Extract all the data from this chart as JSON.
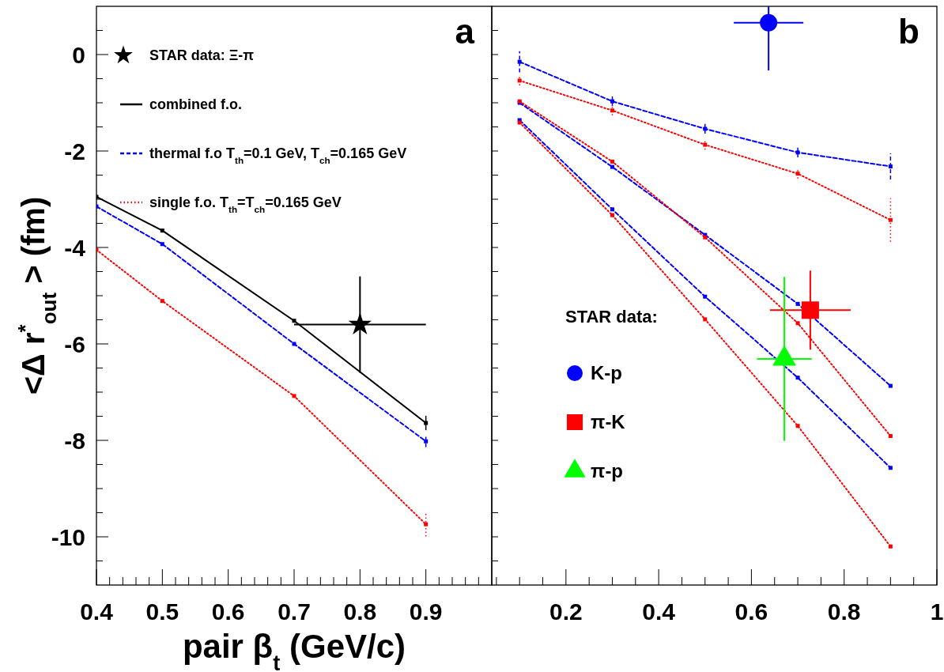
{
  "chart_data": [
    {
      "type": "line",
      "xlabel": "pair β$_{t}$ (GeV/c)",
      "ylabel": "<Δ r$^{*}$$_{out}$ > (fm)",
      "annotations": [
        "a"
      ],
      "legend": "top left",
      "xlim": [
        0.4,
        1.0
      ],
      "ylim": [
        -11,
        1
      ],
      "xticks": [
        0.4,
        {
          "value": 0.42,
          "label": null
        },
        {
          "value": 0.44,
          "label": null
        },
        {
          "value": 0.46,
          "label": null
        },
        {
          "value": 0.48,
          "label": null
        },
        0.5,
        {
          "value": 0.52,
          "label": null
        },
        {
          "value": 0.54,
          "label": null
        },
        {
          "value": 0.56,
          "label": null
        },
        {
          "value": 0.58,
          "label": null
        },
        0.6,
        {
          "value": 0.62,
          "label": null
        },
        {
          "value": 0.64,
          "label": null
        },
        {
          "value": 0.66,
          "label": null
        },
        {
          "value": 0.68,
          "label": null
        },
        0.7,
        {
          "value": 0.72,
          "label": null
        },
        {
          "value": 0.74,
          "label": null
        },
        {
          "value": 0.76,
          "label": null
        },
        {
          "value": 0.78,
          "label": null
        },
        0.8,
        {
          "value": 0.82,
          "label": null
        },
        {
          "value": 0.84,
          "label": null
        },
        {
          "value": 0.86,
          "label": null
        },
        {
          "value": 0.88,
          "label": null
        },
        0.9,
        {
          "value": 0.92,
          "label": null
        },
        {
          "value": 0.94,
          "label": null
        },
        {
          "value": 0.96,
          "label": null
        },
        {
          "value": 0.98,
          "label": null
        }
      ],
      "yticks": [
        {
          "value": -10.5,
          "label": null
        },
        -10,
        {
          "value": -9.5,
          "label": null
        },
        {
          "value": -9,
          "label": null
        },
        {
          "value": -8.5,
          "label": null
        },
        -8,
        {
          "value": -7.5,
          "label": null
        },
        {
          "value": -7,
          "label": null
        },
        {
          "value": -6.5,
          "label": null
        },
        -6,
        {
          "value": -5.5,
          "label": null
        },
        {
          "value": -5,
          "label": null
        },
        {
          "value": -4.5,
          "label": null
        },
        -4,
        {
          "value": -3.5,
          "label": null
        },
        {
          "value": -3,
          "label": null
        },
        {
          "value": -2.5,
          "label": null
        },
        -2,
        {
          "value": -1.5,
          "label": null
        },
        {
          "value": -1,
          "label": null
        },
        {
          "value": -0.5,
          "label": null
        },
        0,
        {
          "value": 0.5,
          "label": null
        }
      ],
      "series": [
        {
          "name": "STAR data: Ξ-π",
          "type": "scatter",
          "marker": "star",
          "color": "#000000",
          "x": [
            0.8
          ],
          "values": [
            -5.6
          ],
          "errors": [
            1.0
          ],
          "xerrors": [
            0.1
          ]
        },
        {
          "name": "combined f.o.",
          "type": "line",
          "line_style": "solid",
          "marker": "square",
          "color": "#000000",
          "x": [
            0.4,
            0.5,
            0.7,
            0.9
          ],
          "values": [
            -2.95,
            -3.65,
            -5.52,
            -7.64
          ],
          "errors": [
            null,
            null,
            null,
            0.15
          ]
        },
        {
          "name": "thermal f.o T$_{th}$=0.1 GeV, T$_{ch}$=0.165 GeV",
          "type": "line",
          "line_style": "dashed",
          "marker": "square",
          "color": "#0000ff",
          "x": [
            0.4,
            0.5,
            0.7,
            0.9
          ],
          "values": [
            -3.15,
            -3.93,
            -6.0,
            -8.02
          ],
          "errors": [
            null,
            null,
            null,
            0.12
          ]
        },
        {
          "name": "single f.o. T$_{th}$=T$_{ch}$=0.165 GeV",
          "type": "line",
          "line_style": "dotted",
          "marker": "square",
          "color": "#ff0000",
          "x": [
            0.4,
            0.5,
            0.7,
            0.9
          ],
          "values": [
            -4.05,
            -5.11,
            -7.08,
            -9.74
          ],
          "errors": [
            null,
            null,
            null,
            0.25
          ]
        }
      ]
    },
    {
      "type": "line",
      "annotations": [
        "b"
      ],
      "legend": "left",
      "legend_title": "STAR data:",
      "tick_labels": "x",
      "xlim": [
        0.04,
        1.0
      ],
      "ylim": [
        -11,
        1
      ],
      "xticks": [
        {
          "value": 0.05,
          "label": null
        },
        {
          "value": 0.1,
          "label": null
        },
        {
          "value": 0.15,
          "label": null
        },
        0.2,
        {
          "value": 0.25,
          "label": null
        },
        {
          "value": 0.3,
          "label": null
        },
        {
          "value": 0.35,
          "label": null
        },
        0.4,
        {
          "value": 0.45,
          "label": null
        },
        {
          "value": 0.5,
          "label": null
        },
        {
          "value": 0.55,
          "label": null
        },
        0.6,
        {
          "value": 0.65,
          "label": null
        },
        {
          "value": 0.7,
          "label": null
        },
        {
          "value": 0.75,
          "label": null
        },
        0.8,
        {
          "value": 0.85,
          "label": null
        },
        {
          "value": 0.9,
          "label": null
        },
        {
          "value": 0.95,
          "label": null
        },
        1
      ],
      "yticks": [
        {
          "value": -10.5,
          "label": null
        },
        {
          "value": -10,
          "label": null
        },
        {
          "value": -9.5,
          "label": null
        },
        {
          "value": -9,
          "label": null
        },
        {
          "value": -8.5,
          "label": null
        },
        {
          "value": -8,
          "label": null
        },
        {
          "value": -7.5,
          "label": null
        },
        {
          "value": -7,
          "label": null
        },
        {
          "value": -6.5,
          "label": null
        },
        {
          "value": -6,
          "label": null
        },
        {
          "value": -5.5,
          "label": null
        },
        {
          "value": -5,
          "label": null
        },
        {
          "value": -4.5,
          "label": null
        },
        {
          "value": -4,
          "label": null
        },
        {
          "value": -3.5,
          "label": null
        },
        {
          "value": -3,
          "label": null
        },
        {
          "value": -2.5,
          "label": null
        },
        {
          "value": -2,
          "label": null
        },
        {
          "value": -1.5,
          "label": null
        },
        {
          "value": -1,
          "label": null
        },
        {
          "value": -0.5,
          "label": null
        },
        {
          "value": 0,
          "label": null
        },
        {
          "value": 0.5,
          "label": null
        }
      ],
      "series": [
        {
          "type": "line",
          "line_style": "dashed",
          "marker": "square",
          "color": "#0000ff",
          "x": [
            0.1,
            0.3,
            0.5,
            0.7,
            0.9
          ],
          "values": [
            -0.15,
            -0.97,
            -1.54,
            -2.03,
            -2.32
          ],
          "errors": [
            0.22,
            0.1,
            0.1,
            0.1,
            0.27
          ]
        },
        {
          "type": "line",
          "line_style": "dotted",
          "marker": "square",
          "color": "#ff0000",
          "x": [
            0.1,
            0.3,
            0.5,
            0.7,
            0.9
          ],
          "values": [
            -0.54,
            -1.16,
            -1.87,
            -2.47,
            -3.43
          ],
          "errors": [
            0.1,
            0.1,
            0.1,
            0.1,
            0.45
          ]
        },
        {
          "type": "line",
          "line_style": "dashed",
          "marker": "square",
          "color": "#0000ff",
          "x": [
            0.1,
            0.3,
            0.5,
            0.7,
            0.9
          ],
          "values": [
            -1.0,
            -2.33,
            -3.74,
            -5.17,
            -6.87
          ]
        },
        {
          "type": "line",
          "line_style": "dotted",
          "marker": "square",
          "color": "#ff0000",
          "x": [
            0.1,
            0.3,
            0.5,
            0.7,
            0.9
          ],
          "values": [
            -0.97,
            -2.22,
            -3.79,
            -5.57,
            -7.91
          ]
        },
        {
          "type": "line",
          "line_style": "dashed",
          "marker": "square",
          "color": "#0000ff",
          "x": [
            0.1,
            0.3,
            0.5,
            0.7,
            0.9
          ],
          "values": [
            -1.36,
            -3.21,
            -5.02,
            -6.7,
            -8.57
          ]
        },
        {
          "type": "line",
          "line_style": "dotted",
          "marker": "square",
          "color": "#ff0000",
          "x": [
            0.1,
            0.3,
            0.5,
            0.7,
            0.9
          ],
          "values": [
            -1.41,
            -3.33,
            -5.49,
            -7.7,
            -10.2
          ]
        },
        {
          "name": "K-p",
          "type": "scatter",
          "marker": "circle",
          "color": "#0000ff",
          "x": [
            0.637
          ],
          "values": [
            0.66
          ],
          "errors": [
            [
              -0.33,
              1.0
            ]
          ],
          "xerrors": [
            0.075
          ]
        },
        {
          "name": "π-K",
          "type": "scatter",
          "marker": "square",
          "color": "#ff0000",
          "x": [
            0.727
          ],
          "values": [
            -5.3
          ],
          "errors": [
            0.82
          ],
          "xerrors": [
            0.087
          ]
        },
        {
          "name": "π-p",
          "type": "scatter",
          "marker": "triangle",
          "color": "#00ff00",
          "x": [
            0.671
          ],
          "values": [
            -6.31
          ],
          "errors": [
            1.7
          ],
          "xerrors": [
            0.059
          ]
        }
      ]
    }
  ]
}
